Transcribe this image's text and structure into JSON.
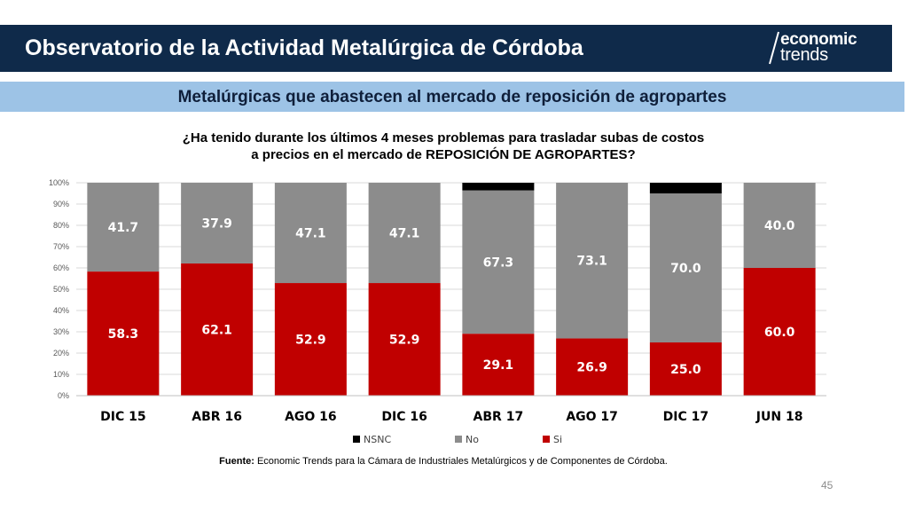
{
  "header": {
    "title": "Observatorio de la Actividad Metalúrgica de Córdoba",
    "brand_top": "economic",
    "brand_bottom": "trends"
  },
  "subtitle": "Metalúrgicas que abastecen al mercado de reposición de agropartes",
  "question_line1": "¿Ha tenido durante los últimos 4 meses problemas para trasladar subas de costos",
  "question_line2": "a precios en el mercado de REPOSICIÓN DE AGROPARTES?",
  "footnote": {
    "label": "Fuente:",
    "text": " Economic Trends para la Cámara de Industriales Metalúrgicos y de Componentes de Córdoba."
  },
  "page_number": "45",
  "colors": {
    "header_bg": "#0f2a4a",
    "subtitle_bg": "#9dc3e6",
    "si": "#c00000",
    "no": "#8c8c8c",
    "nsnc": "#000000"
  },
  "chart_data": {
    "type": "bar",
    "stacked": true,
    "percent_stacked": true,
    "categories": [
      "DIC 15",
      "ABR 16",
      "AGO 16",
      "DIC 16",
      "ABR 17",
      "AGO 17",
      "DIC 17",
      "JUN 18"
    ],
    "series": [
      {
        "name": "Si",
        "color": "#c00000",
        "values": [
          58.3,
          62.1,
          52.9,
          52.9,
          29.1,
          26.9,
          25.0,
          60.0
        ],
        "labels": [
          "58.3",
          "62.1",
          "52.9",
          "52.9",
          "29.1",
          "26.9",
          "25.0",
          "60.0"
        ]
      },
      {
        "name": "No",
        "color": "#8c8c8c",
        "values": [
          41.7,
          37.9,
          47.1,
          47.1,
          67.3,
          73.1,
          70.0,
          40.0
        ],
        "labels": [
          "41.7",
          "37.9",
          "47.1",
          "47.1",
          "67.3",
          "73.1",
          "70.0",
          "40.0"
        ]
      },
      {
        "name": "NSNC",
        "color": "#000000",
        "values": [
          0,
          0,
          0,
          0,
          3.6,
          0,
          5.0,
          0
        ]
      }
    ],
    "y_ticks": [
      "0%",
      "10%",
      "20%",
      "30%",
      "40%",
      "50%",
      "60%",
      "70%",
      "80%",
      "90%",
      "100%"
    ],
    "ylim": [
      0,
      100
    ],
    "grid": true,
    "legend": {
      "placement": "bottom",
      "order": [
        "NSNC",
        "No",
        "Si"
      ]
    }
  }
}
